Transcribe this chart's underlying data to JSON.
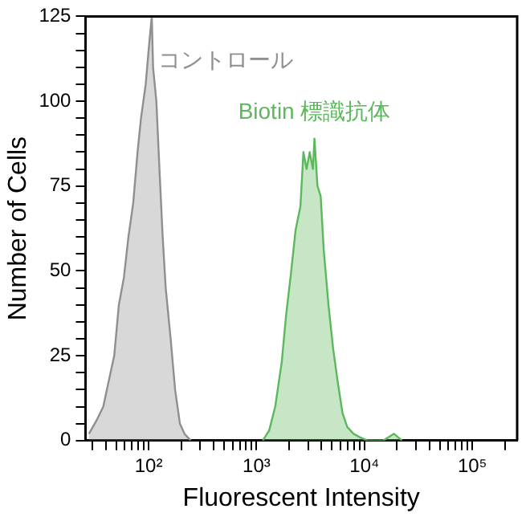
{
  "chart_data": {
    "type": "area",
    "xlabel": "Fluorescent Intensity",
    "ylabel": "Number of Cells",
    "log": "x",
    "xlim": [
      26,
      260000
    ],
    "ylim": [
      0,
      125
    ],
    "xticks": [
      {
        "value": 30,
        "label": null
      },
      {
        "value": 40,
        "label": null
      },
      {
        "value": 50,
        "label": null
      },
      {
        "value": 60,
        "label": null
      },
      {
        "value": 70,
        "label": null
      },
      {
        "value": 80,
        "label": null
      },
      {
        "value": 90,
        "label": null
      },
      {
        "value": 100,
        "label": "10²"
      },
      {
        "value": 200,
        "label": null
      },
      {
        "value": 300,
        "label": null
      },
      {
        "value": 400,
        "label": null
      },
      {
        "value": 500,
        "label": null
      },
      {
        "value": 600,
        "label": null
      },
      {
        "value": 700,
        "label": null
      },
      {
        "value": 800,
        "label": null
      },
      {
        "value": 900,
        "label": null
      },
      {
        "value": 1000,
        "label": "10³"
      },
      {
        "value": 2000,
        "label": null
      },
      {
        "value": 3000,
        "label": null
      },
      {
        "value": 4000,
        "label": null
      },
      {
        "value": 5000,
        "label": null
      },
      {
        "value": 6000,
        "label": null
      },
      {
        "value": 7000,
        "label": null
      },
      {
        "value": 8000,
        "label": null
      },
      {
        "value": 9000,
        "label": null
      },
      {
        "value": 10000,
        "label": "10⁴"
      },
      {
        "value": 20000,
        "label": null
      },
      {
        "value": 30000,
        "label": null
      },
      {
        "value": 40000,
        "label": null
      },
      {
        "value": 50000,
        "label": null
      },
      {
        "value": 60000,
        "label": null
      },
      {
        "value": 70000,
        "label": null
      },
      {
        "value": 80000,
        "label": null
      },
      {
        "value": 90000,
        "label": null
      },
      {
        "value": 100000,
        "label": "10⁵"
      },
      {
        "value": 200000,
        "label": null
      }
    ],
    "yticks": [
      0,
      {
        "value": 5,
        "label": null
      },
      {
        "value": 10,
        "label": null
      },
      {
        "value": 15,
        "label": null
      },
      {
        "value": 20,
        "label": null
      },
      25,
      {
        "value": 30,
        "label": null
      },
      {
        "value": 35,
        "label": null
      },
      {
        "value": 40,
        "label": null
      },
      {
        "value": 45,
        "label": null
      },
      50,
      {
        "value": 55,
        "label": null
      },
      {
        "value": 60,
        "label": null
      },
      {
        "value": 65,
        "label": null
      },
      {
        "value": 70,
        "label": null
      },
      75,
      {
        "value": 80,
        "label": null
      },
      {
        "value": 85,
        "label": null
      },
      {
        "value": 90,
        "label": null
      },
      {
        "value": 95,
        "label": null
      },
      100,
      {
        "value": 105,
        "label": null
      },
      {
        "value": 110,
        "label": null
      },
      {
        "value": 115,
        "label": null
      },
      {
        "value": 120,
        "label": null
      },
      125
    ],
    "grid": false,
    "legend": false,
    "series": [
      {
        "name": "コントロール",
        "color": "#8f8f8f",
        "x": [
          28,
          33,
          38,
          43,
          48,
          53,
          59,
          65,
          72,
          79,
          85,
          94,
          100,
          107,
          110,
          118,
          126,
          135,
          144,
          160,
          176,
          195,
          215,
          246
        ],
        "values": [
          2,
          6,
          10,
          18,
          25,
          40,
          48,
          60,
          70,
          85,
          95,
          105,
          115,
          125,
          110,
          100,
          80,
          60,
          45,
          30,
          15,
          5,
          2,
          0
        ]
      },
      {
        "name": "Biotin 標識抗体",
        "color": "#5cb85c",
        "x": [
          1140,
          1310,
          1490,
          1710,
          1880,
          2080,
          2300,
          2550,
          2720,
          2910,
          3110,
          3330,
          3440,
          3670,
          3930,
          4200,
          4640,
          5130,
          5670,
          6270,
          6930,
          7930,
          9060,
          10700,
          14900,
          18800,
          22300
        ],
        "values": [
          0,
          3,
          10,
          23,
          37,
          49,
          62,
          69,
          85,
          80,
          85,
          80,
          89,
          75,
          72,
          56,
          40,
          27,
          17,
          8,
          4,
          2,
          1,
          0,
          0,
          2,
          0
        ]
      }
    ]
  }
}
